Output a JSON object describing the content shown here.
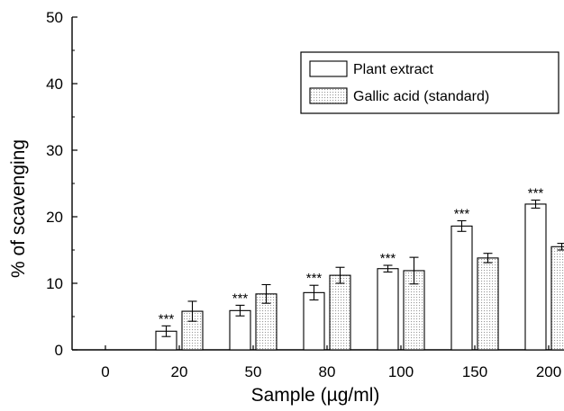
{
  "chart_data": {
    "type": "bar",
    "xlabel": "Sample (µg/ml)",
    "ylabel": "% of scavenging",
    "ylim": [
      0,
      50
    ],
    "yticks": [
      0,
      10,
      20,
      30,
      40,
      50
    ],
    "categories": [
      "0",
      "20",
      "50",
      "80",
      "100",
      "150",
      "200"
    ],
    "grid": false,
    "legend_position": "top-right",
    "series": [
      {
        "name": "Plant extract",
        "pattern": "plain",
        "fill": "#ffffff",
        "values": [
          null,
          2.8,
          5.9,
          8.6,
          12.2,
          18.6,
          21.9
        ],
        "errors": [
          null,
          0.8,
          0.8,
          1.1,
          0.5,
          0.8,
          0.6
        ]
      },
      {
        "name": "Gallic acid (standard)",
        "pattern": "dotted",
        "fill": "#ffffff",
        "values": [
          null,
          5.8,
          8.4,
          11.2,
          11.9,
          13.8,
          15.5
        ],
        "errors": [
          null,
          1.5,
          1.4,
          1.2,
          2.0,
          0.7,
          0.5
        ]
      }
    ],
    "annotations": [
      {
        "category": "20",
        "text": "***"
      },
      {
        "category": "50",
        "text": "***"
      },
      {
        "category": "80",
        "text": "***"
      },
      {
        "category": "100",
        "text": "***"
      },
      {
        "category": "150",
        "text": "***"
      },
      {
        "category": "200",
        "text": "***"
      }
    ]
  }
}
